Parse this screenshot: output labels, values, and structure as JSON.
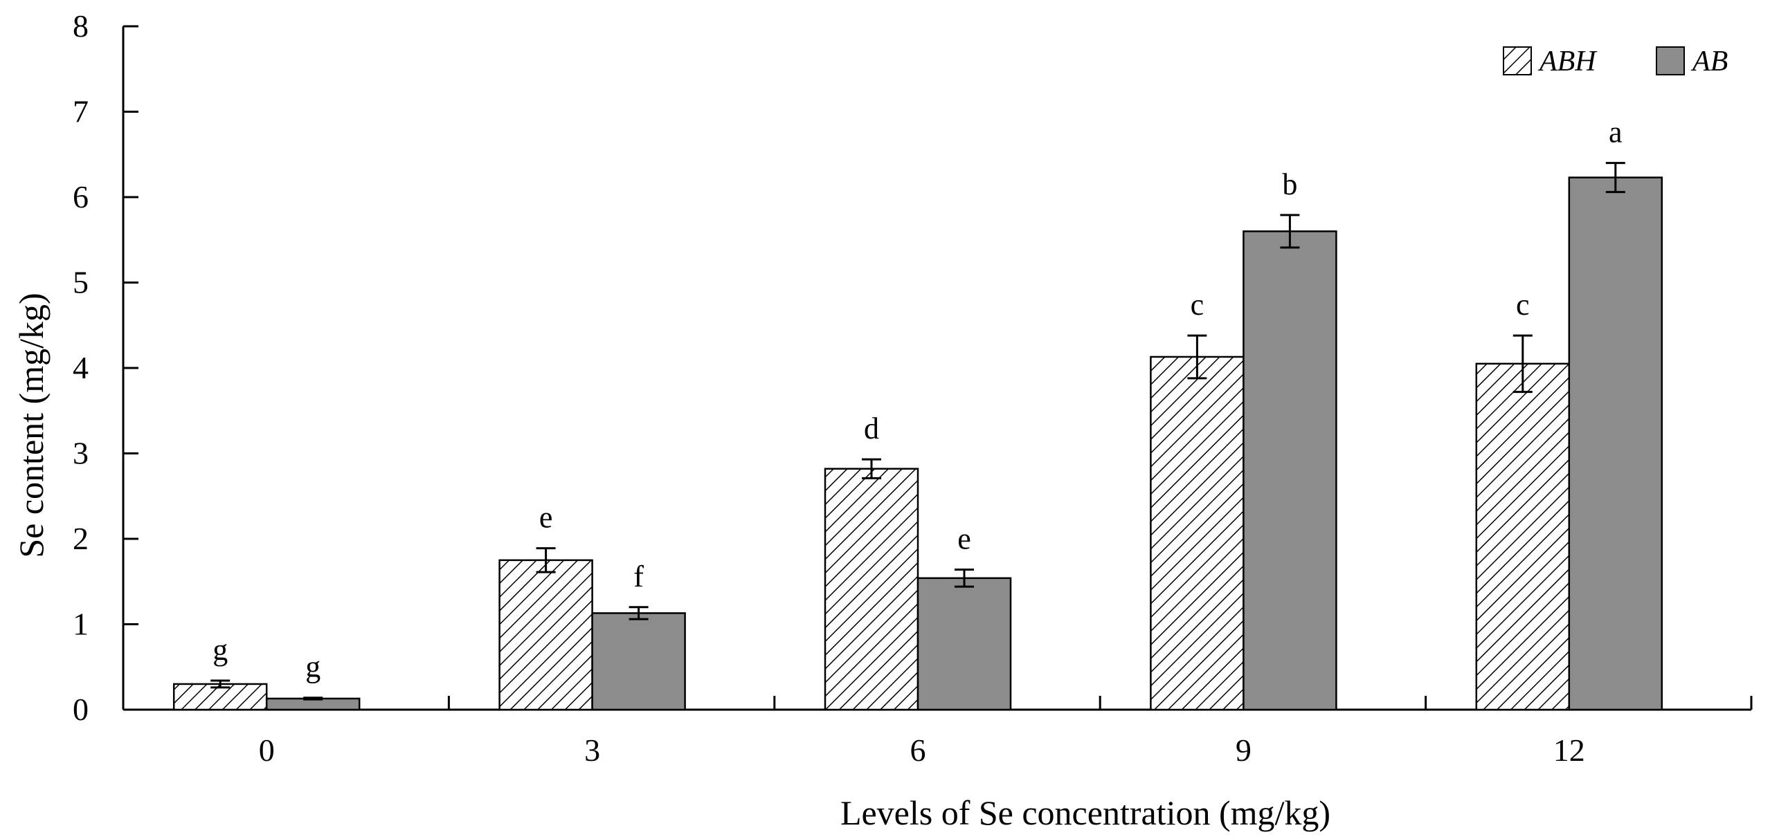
{
  "chart_data": {
    "type": "bar",
    "title": "",
    "xlabel": "Levels of Se concentration (mg/kg)",
    "ylabel": "Se content (mg/kg)",
    "categories": [
      "0",
      "3",
      "6",
      "9",
      "12"
    ],
    "ylim": [
      0,
      8
    ],
    "yticks": [
      "0",
      "1",
      "2",
      "3",
      "4",
      "5",
      "6",
      "7",
      "8"
    ],
    "grid": false,
    "legend_position": "top-right",
    "series": [
      {
        "name": "ABH",
        "pattern": "hatched",
        "color": "#ffffff",
        "values": [
          0.3,
          1.75,
          2.82,
          4.13,
          4.05
        ],
        "errors": [
          0.04,
          0.14,
          0.11,
          0.25,
          0.33
        ],
        "sig_labels": [
          "g",
          "e",
          "d",
          "c",
          "c"
        ]
      },
      {
        "name": "AB",
        "pattern": "solid",
        "color": "#8c8c8c",
        "values": [
          0.13,
          1.13,
          1.54,
          5.6,
          6.23
        ],
        "errors": [
          0.01,
          0.07,
          0.1,
          0.19,
          0.17
        ],
        "sig_labels": [
          "g",
          "f",
          "e",
          "b",
          "a"
        ]
      }
    ]
  }
}
